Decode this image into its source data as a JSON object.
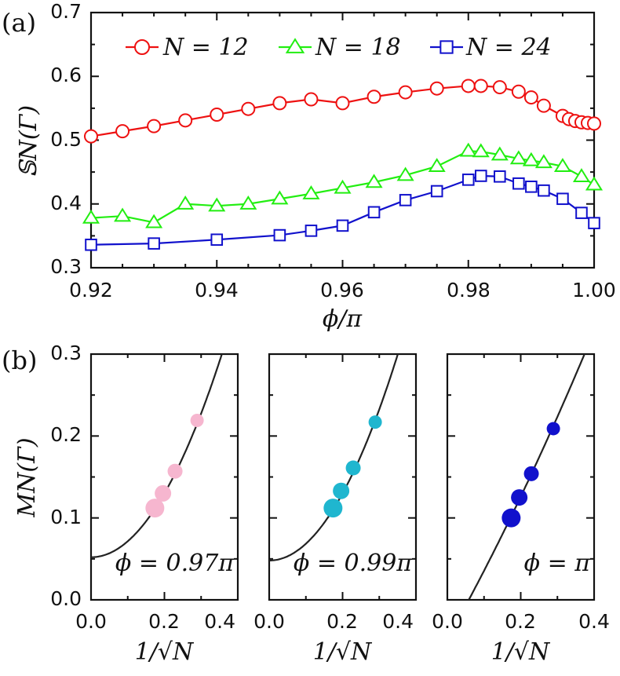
{
  "colors": {
    "N12": "#ee1111",
    "N18": "#22ee11",
    "N24": "#1111cc",
    "phi097": "#f6b6cf",
    "phi099": "#1fb6cf",
    "phi1": "#1111cc"
  },
  "chart_data": [
    {
      "id": "a",
      "type": "line",
      "panel_label": "(a)",
      "xlabel": "ϕ/π",
      "ylabel": "𝕊N(Γ)",
      "xlim": [
        0.92,
        1.0
      ],
      "ylim": [
        0.3,
        0.7
      ],
      "xticks": [
        "0.92",
        "0.94",
        "0.96",
        "0.98",
        "1.00"
      ],
      "yticks": [
        "0.3",
        "0.4",
        "0.5",
        "0.6",
        "0.7"
      ],
      "legend_position": "top",
      "series": [
        {
          "name": "N = 12",
          "marker": "circle",
          "color": "#ee1111",
          "x": [
            0.92,
            0.925,
            0.93,
            0.935,
            0.94,
            0.945,
            0.95,
            0.955,
            0.96,
            0.965,
            0.97,
            0.975,
            0.98,
            0.982,
            0.985,
            0.988,
            0.99,
            0.992,
            0.995,
            0.996,
            0.997,
            0.998,
            0.999,
            1.0
          ],
          "y": [
            0.506,
            0.514,
            0.522,
            0.531,
            0.54,
            0.549,
            0.558,
            0.564,
            0.558,
            0.568,
            0.575,
            0.581,
            0.585,
            0.585,
            0.583,
            0.576,
            0.567,
            0.554,
            0.538,
            0.533,
            0.53,
            0.528,
            0.527,
            0.526
          ]
        },
        {
          "name": "N = 18",
          "marker": "triangle",
          "color": "#22ee11",
          "x": [
            0.92,
            0.925,
            0.93,
            0.935,
            0.94,
            0.945,
            0.95,
            0.955,
            0.96,
            0.965,
            0.97,
            0.975,
            0.98,
            0.982,
            0.985,
            0.988,
            0.99,
            0.992,
            0.995,
            0.998,
            1.0
          ],
          "y": [
            0.378,
            0.381,
            0.371,
            0.4,
            0.397,
            0.4,
            0.408,
            0.416,
            0.425,
            0.434,
            0.445,
            0.459,
            0.483,
            0.482,
            0.477,
            0.471,
            0.468,
            0.465,
            0.459,
            0.443,
            0.43
          ]
        },
        {
          "name": "N = 24",
          "marker": "square",
          "color": "#1111cc",
          "x": [
            0.92,
            0.93,
            0.94,
            0.95,
            0.955,
            0.96,
            0.965,
            0.97,
            0.975,
            0.98,
            0.982,
            0.985,
            0.988,
            0.99,
            0.992,
            0.995,
            0.998,
            1.0
          ],
          "y": [
            0.336,
            0.338,
            0.344,
            0.351,
            0.358,
            0.366,
            0.387,
            0.406,
            0.42,
            0.438,
            0.444,
            0.443,
            0.432,
            0.427,
            0.421,
            0.408,
            0.386,
            0.37
          ]
        }
      ]
    },
    {
      "id": "b",
      "type": "scatter",
      "panel_label": "(b)",
      "xlabel": "1/√N",
      "ylabel": "MN(Γ)",
      "xlim": [
        0.0,
        0.4
      ],
      "ylim": [
        0.0,
        0.3
      ],
      "xticks": [
        "0.0",
        "0.2",
        "0.4"
      ],
      "yticks": [
        "0.0",
        "0.1",
        "0.2",
        "0.3"
      ],
      "subplots": [
        {
          "annotation": "ϕ = 0.97π",
          "color": "#f6b6cf",
          "x": [
            0.174,
            0.196,
            0.229,
            0.289
          ],
          "y": [
            0.112,
            0.13,
            0.157,
            0.219
          ],
          "fit_coeffs": [
            0.052,
            0.0,
            1.95
          ]
        },
        {
          "annotation": "ϕ = 0.99π",
          "color": "#1fb6cf",
          "x": [
            0.174,
            0.196,
            0.229,
            0.289
          ],
          "y": [
            0.112,
            0.133,
            0.161,
            0.217
          ],
          "fit_coeffs": [
            0.048,
            0.0,
            2.05
          ]
        },
        {
          "annotation": "ϕ = π",
          "color": "#1111cc",
          "x": [
            0.174,
            0.196,
            0.229,
            0.289
          ],
          "y": [
            0.1,
            0.125,
            0.154,
            0.209
          ],
          "fit_coeffs": [
            -0.048,
            0.8,
            0.35
          ]
        }
      ]
    }
  ]
}
